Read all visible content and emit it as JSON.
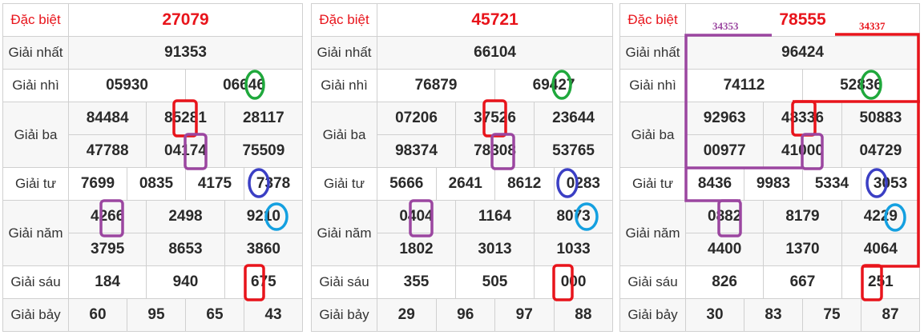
{
  "labels": {
    "db": "Đặc biệt",
    "g1": "Giải nhất",
    "g2": "Giải nhì",
    "g3": "Giải ba",
    "g4": "Giải tư",
    "g5": "Giải năm",
    "g6": "Giải sáu",
    "g7": "Giải bảy"
  },
  "tables": [
    {
      "db": "27079",
      "g1": "91353",
      "g2": [
        "05930",
        "06646"
      ],
      "g3": [
        "84484",
        "85281",
        "28117",
        "47788",
        "04174",
        "75509"
      ],
      "g4": [
        "7699",
        "0835",
        "4175",
        "7378"
      ],
      "g5": [
        "4266",
        "2498",
        "9210",
        "3795",
        "8653",
        "3860"
      ],
      "g6": [
        "184",
        "940",
        "675"
      ],
      "g7": [
        "60",
        "95",
        "65",
        "43"
      ]
    },
    {
      "db": "45721",
      "g1": "66104",
      "g2": [
        "76879",
        "69427"
      ],
      "g3": [
        "07206",
        "37526",
        "23644",
        "98374",
        "78308",
        "53765"
      ],
      "g4": [
        "5666",
        "2641",
        "8612",
        "0283"
      ],
      "g5": [
        "0404",
        "1164",
        "8073",
        "1802",
        "3013",
        "1033"
      ],
      "g6": [
        "355",
        "505",
        "000"
      ],
      "g7": [
        "29",
        "96",
        "97",
        "88"
      ]
    },
    {
      "db": "78555",
      "g1": "96424",
      "g2": [
        "74112",
        "52836"
      ],
      "g3": [
        "92963",
        "48336",
        "50883",
        "00977",
        "41000",
        "04729"
      ],
      "g4": [
        "8436",
        "9983",
        "5334",
        "3053"
      ],
      "g5": [
        "0882",
        "8179",
        "4229",
        "4400",
        "1370",
        "4064"
      ],
      "g6": [
        "826",
        "667",
        "251"
      ],
      "g7": [
        "30",
        "83",
        "75",
        "87"
      ]
    }
  ],
  "annotations": {
    "purple_note": "34353",
    "red_note": "34337"
  },
  "colors": {
    "red": "#e8141b",
    "purple": "#9b46a0",
    "green": "#1fa83c",
    "blue": "#3b3fc4",
    "cyan": "#14a0e0"
  }
}
